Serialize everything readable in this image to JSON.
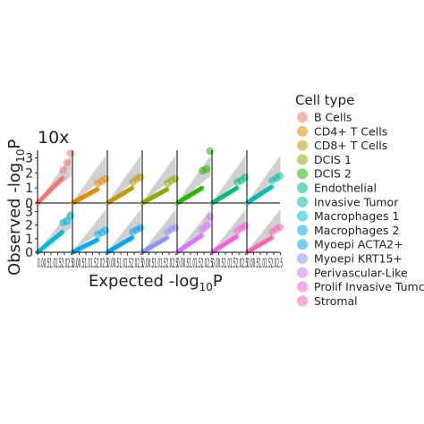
{
  "chart_data": {
    "type": "scatter",
    "subtitle": "10x",
    "xlabel": "Expected -log",
    "xlabel_sub": "10",
    "xlabel_suffix": "P",
    "ylabel": "Observed -log",
    "ylabel_sub": "10",
    "ylabel_suffix": "P",
    "ylim": [
      0,
      3.5
    ],
    "xlim": [
      0,
      2.6
    ],
    "y_ticks": [
      "0",
      "1",
      "2",
      "3"
    ],
    "x_ticks": [
      "0",
      "0.5",
      "1",
      "1.5",
      "2",
      "2.5"
    ],
    "x_tick_labels_rendered": "0.00.51.01.52.02.5",
    "grid": false,
    "legend": {
      "title": "Cell type",
      "position": "right"
    },
    "series": [
      {
        "name": "B Cells",
        "color": "#F8766D",
        "tail": [
          [
            1.9,
            2.2
          ],
          [
            2.2,
            2.7
          ],
          [
            2.45,
            3.3
          ]
        ],
        "scale": 1.0
      },
      {
        "name": "CD4+ T Cells",
        "color": "#E18A00",
        "tail": [
          [
            1.9,
            1.3
          ],
          [
            2.2,
            1.45
          ],
          [
            2.45,
            1.6
          ]
        ],
        "scale": 0.55
      },
      {
        "name": "CD8+ T Cells",
        "color": "#BE9C00",
        "tail": [
          [
            1.9,
            1.4
          ],
          [
            2.2,
            1.6
          ],
          [
            2.45,
            1.7
          ]
        ],
        "scale": 0.6
      },
      {
        "name": "DCIS 1",
        "color": "#8CAB00",
        "tail": [
          [
            1.9,
            1.3
          ],
          [
            2.2,
            1.5
          ],
          [
            2.45,
            1.6
          ]
        ],
        "scale": 0.55
      },
      {
        "name": "DCIS 2",
        "color": "#24B700",
        "tail": [
          [
            1.9,
            2.15
          ],
          [
            2.2,
            2.25
          ],
          [
            2.45,
            3.45
          ]
        ],
        "scale": 0.6
      },
      {
        "name": "Endothelial",
        "color": "#00BE70",
        "tail": [
          [
            1.9,
            1.4
          ],
          [
            2.2,
            1.5
          ],
          [
            2.45,
            1.7
          ]
        ],
        "scale": 0.6
      },
      {
        "name": "Invasive Tumor",
        "color": "#00C1AB",
        "tail": [
          [
            1.9,
            1.5
          ],
          [
            2.2,
            1.65
          ],
          [
            2.45,
            1.8
          ]
        ],
        "scale": 0.65
      },
      {
        "name": "Macrophages 1",
        "color": "#00BBDA",
        "tail": [
          [
            1.9,
            2.2
          ],
          [
            2.2,
            2.3
          ],
          [
            2.45,
            2.7
          ]
        ],
        "scale": 0.9
      },
      {
        "name": "Macrophages 2",
        "color": "#00ACFC",
        "tail": [
          [
            1.9,
            1.3
          ],
          [
            2.2,
            1.45
          ],
          [
            2.45,
            1.6
          ]
        ],
        "scale": 0.55
      },
      {
        "name": "Myoepi ACTA2+",
        "color": "#00A5FF",
        "tail": [
          [
            1.9,
            1.5
          ],
          [
            2.2,
            1.65
          ],
          [
            2.45,
            1.8
          ]
        ],
        "scale": 0.65
      },
      {
        "name": "Myoepi KRT15+",
        "color": "#8B93FF",
        "tail": [
          [
            1.9,
            1.5
          ],
          [
            2.2,
            1.7
          ],
          [
            2.45,
            1.8
          ]
        ],
        "scale": 0.65
      },
      {
        "name": "Perivascular-Like",
        "color": "#D575FE",
        "tail": [
          [
            1.9,
            1.7
          ],
          [
            2.2,
            2.0
          ],
          [
            2.45,
            2.6
          ]
        ],
        "scale": 0.75
      },
      {
        "name": "Prolif Invasive Tumor",
        "color": "#F962DD",
        "tail": [
          [
            1.9,
            1.6
          ],
          [
            2.2,
            1.8
          ],
          [
            2.45,
            1.95
          ]
        ],
        "scale": 0.7
      },
      {
        "name": "Stromal",
        "color": "#FF65AC",
        "tail": [
          [
            1.9,
            1.5
          ],
          [
            2.2,
            1.7
          ],
          [
            2.45,
            1.85
          ]
        ],
        "scale": 0.65
      }
    ],
    "legend_entries_visible": [
      "B Cells",
      "CD4+ T Cells",
      "CD8+ T Cells",
      "DCIS 1",
      "DCIS 2",
      "Endothelial",
      "Invasive Tumor",
      "Macrophages 1",
      "Macrophages 2",
      "Myoepi ACTA2+",
      "Myoepi KRT15+",
      "Perivascular-Like",
      "Prolif Invasive Tumc",
      "Stromal"
    ]
  }
}
